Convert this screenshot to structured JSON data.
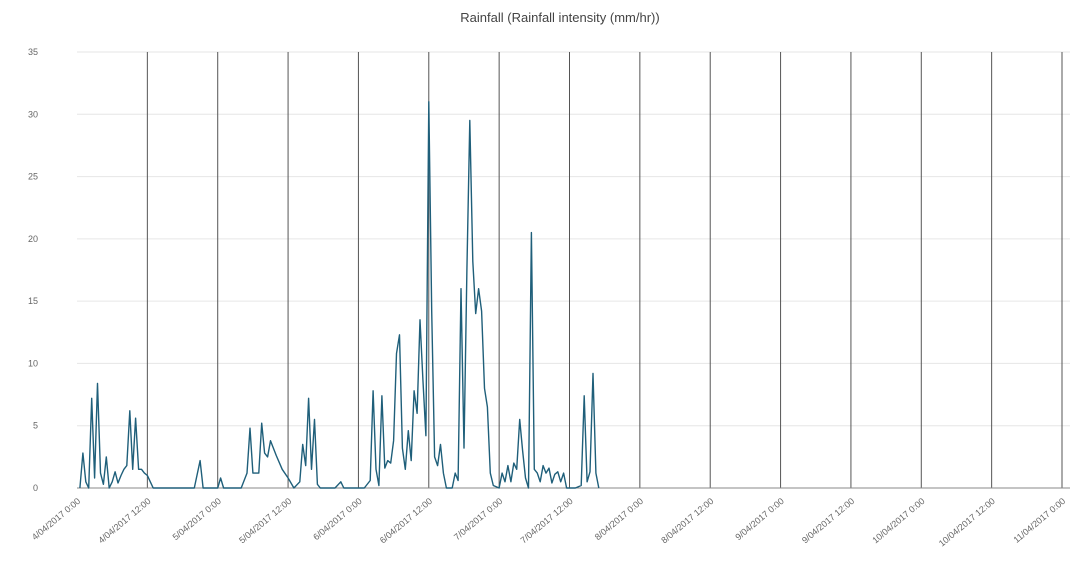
{
  "chart_data": {
    "type": "line",
    "title": "Rainfall (Rainfall intensity (mm/hr))",
    "xlabel": "",
    "ylabel": "",
    "ylim": [
      0,
      35
    ],
    "yticks": [
      0,
      5,
      10,
      15,
      20,
      25,
      30,
      35
    ],
    "grid": true,
    "x_tick_labels": [
      "4/04/2017 0:00",
      "4/04/2017 12:00",
      "5/04/2017 0:00",
      "5/04/2017 12:00",
      "6/04/2017 0:00",
      "6/04/2017 12:00",
      "7/04/2017 0:00",
      "7/04/2017 12:00",
      "8/04/2017 0:00",
      "8/04/2017 12:00",
      "9/04/2017 0:00",
      "9/04/2017 12:00",
      "10/04/2017 0:00",
      "10/04/2017 12:00",
      "11/04/2017 0:00"
    ],
    "x_unit": "hours from 4/04/2017 0:00",
    "xlim": [
      0,
      168
    ],
    "colors": {
      "line": "#1f5f7a"
    },
    "series": [
      {
        "name": "",
        "points": [
          [
            0.5,
            0
          ],
          [
            1,
            2.8
          ],
          [
            1.5,
            0.5
          ],
          [
            2,
            0
          ],
          [
            2.5,
            7.2
          ],
          [
            3,
            0.8
          ],
          [
            3.5,
            8.4
          ],
          [
            4,
            1.2
          ],
          [
            4.5,
            0.3
          ],
          [
            5,
            2.5
          ],
          [
            5.5,
            0
          ],
          [
            6,
            0.5
          ],
          [
            6.5,
            1.3
          ],
          [
            7,
            0.4
          ],
          [
            7.5,
            1
          ],
          [
            8,
            1.5
          ],
          [
            8.5,
            1.8
          ],
          [
            9,
            6.2
          ],
          [
            9.5,
            1.5
          ],
          [
            10,
            5.6
          ],
          [
            10.5,
            1.5
          ],
          [
            11,
            1.5
          ],
          [
            11.5,
            1.2
          ],
          [
            12,
            1
          ],
          [
            12.5,
            0.5
          ],
          [
            13,
            0
          ],
          [
            15,
            0
          ],
          [
            20,
            0
          ],
          [
            21,
            2.2
          ],
          [
            21.5,
            0
          ],
          [
            24,
            0
          ],
          [
            24.5,
            0.8
          ],
          [
            25,
            0
          ],
          [
            28,
            0
          ],
          [
            29,
            1.2
          ],
          [
            29.5,
            4.8
          ],
          [
            30,
            1.2
          ],
          [
            31,
            1.2
          ],
          [
            31.5,
            5.2
          ],
          [
            32,
            2.8
          ],
          [
            32.5,
            2.5
          ],
          [
            33,
            3.8
          ],
          [
            34,
            2.6
          ],
          [
            35,
            1.5
          ],
          [
            36,
            0.8
          ],
          [
            37,
            0
          ],
          [
            38,
            0.5
          ],
          [
            38.5,
            3.5
          ],
          [
            39,
            1.8
          ],
          [
            39.5,
            7.2
          ],
          [
            40,
            1.5
          ],
          [
            40.5,
            5.5
          ],
          [
            41,
            0.3
          ],
          [
            41.5,
            0
          ],
          [
            43,
            0
          ],
          [
            44,
            0
          ],
          [
            45,
            0.5
          ],
          [
            45.5,
            0
          ],
          [
            49,
            0
          ],
          [
            50,
            0.6
          ],
          [
            50.5,
            7.8
          ],
          [
            51,
            1.5
          ],
          [
            51.5,
            0.2
          ],
          [
            52,
            7.4
          ],
          [
            52.5,
            1.6
          ],
          [
            53,
            2.2
          ],
          [
            53.5,
            2
          ],
          [
            54,
            3.8
          ],
          [
            54.5,
            10.8
          ],
          [
            55,
            12.3
          ],
          [
            55.5,
            3.2
          ],
          [
            56,
            1.5
          ],
          [
            56.5,
            4.6
          ],
          [
            57,
            2.2
          ],
          [
            57.5,
            7.8
          ],
          [
            58,
            6
          ],
          [
            58.5,
            13.5
          ],
          [
            59,
            8.7
          ],
          [
            59.5,
            4.2
          ],
          [
            60,
            31
          ],
          [
            60.5,
            14.2
          ],
          [
            61,
            2.5
          ],
          [
            61.5,
            1.8
          ],
          [
            62,
            3.5
          ],
          [
            62.5,
            1.2
          ],
          [
            63,
            0
          ],
          [
            64,
            0
          ],
          [
            64.5,
            1.2
          ],
          [
            65,
            0.6
          ],
          [
            65.5,
            16
          ],
          [
            66,
            3.2
          ],
          [
            66.5,
            17.5
          ],
          [
            67,
            29.5
          ],
          [
            67.5,
            18.2
          ],
          [
            68,
            14
          ],
          [
            68.5,
            16
          ],
          [
            69,
            14.2
          ],
          [
            69.5,
            8
          ],
          [
            70,
            6.5
          ],
          [
            70.5,
            1.2
          ],
          [
            71,
            0.2
          ],
          [
            72,
            0
          ],
          [
            72.5,
            1.2
          ],
          [
            73,
            0.5
          ],
          [
            73.5,
            1.8
          ],
          [
            74,
            0.5
          ],
          [
            74.5,
            2
          ],
          [
            75,
            1.5
          ],
          [
            75.5,
            5.5
          ],
          [
            76,
            3
          ],
          [
            76.5,
            0.8
          ],
          [
            77,
            0
          ],
          [
            77.5,
            20.5
          ],
          [
            78,
            1.5
          ],
          [
            78.5,
            1.2
          ],
          [
            79,
            0.5
          ],
          [
            79.5,
            1.8
          ],
          [
            80,
            1.2
          ],
          [
            80.5,
            1.6
          ],
          [
            81,
            0.4
          ],
          [
            81.5,
            1.1
          ],
          [
            82,
            1.3
          ],
          [
            82.5,
            0.5
          ],
          [
            83,
            1.2
          ],
          [
            83.5,
            0
          ],
          [
            85,
            0
          ],
          [
            86,
            0.2
          ],
          [
            86.5,
            7.4
          ],
          [
            87,
            0.5
          ],
          [
            87.5,
            1.3
          ],
          [
            88,
            9.2
          ],
          [
            88.5,
            1.2
          ],
          [
            89,
            0
          ]
        ]
      }
    ]
  }
}
